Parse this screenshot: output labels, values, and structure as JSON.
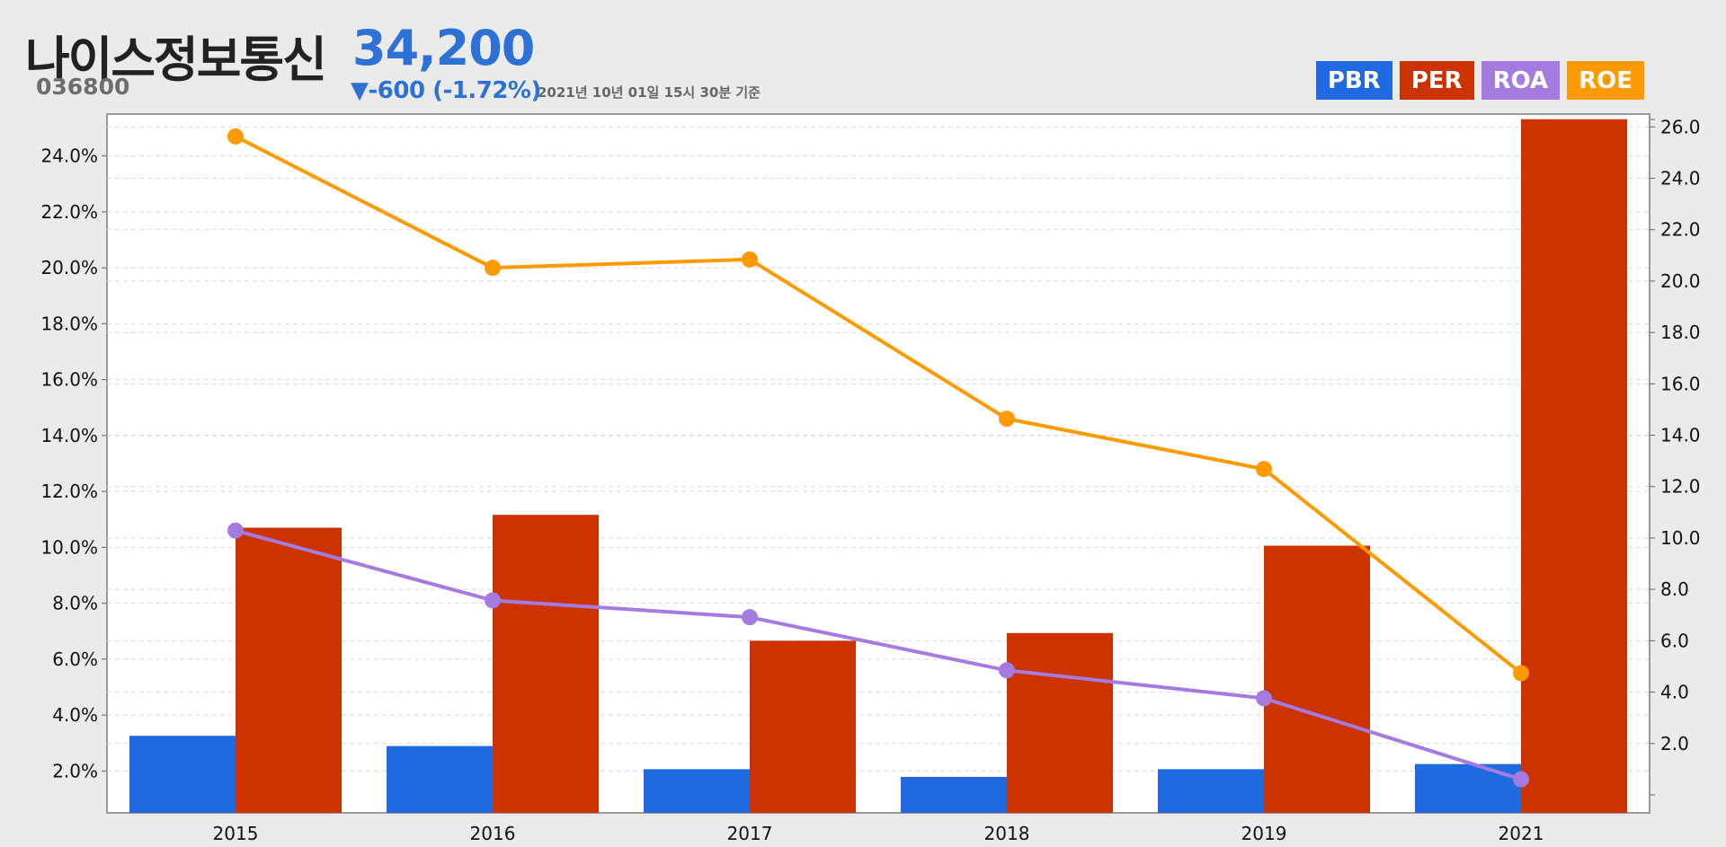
{
  "header": {
    "company_name": "나이스정보통신",
    "ticker_code": "036800",
    "price": "34,200",
    "change": "▼-600 (-1.72%)",
    "as_of": "2021년 10년 01일 15시 30분 기준"
  },
  "legend": [
    {
      "label": "PBR",
      "color": "#1f6ae1"
    },
    {
      "label": "PER",
      "color": "#cc3300"
    },
    {
      "label": "ROA",
      "color": "#a57be0"
    },
    {
      "label": "ROE",
      "color": "#ff9900"
    }
  ],
  "chart_data": {
    "type": "bar",
    "categories": [
      "2015",
      "2016",
      "2017",
      "2018",
      "2019",
      "2021"
    ],
    "left_axis": {
      "ticks": [
        "2.0%",
        "4.0%",
        "6.0%",
        "8.0%",
        "10.0%",
        "12.0%",
        "14.0%",
        "16.0%",
        "18.0%",
        "20.0%",
        "22.0%",
        "24.0%"
      ],
      "range": [
        0.5,
        25.5
      ]
    },
    "right_axis": {
      "ticks": [
        "2.0",
        "4.0",
        "6.0",
        "8.0",
        "10.0",
        "12.0",
        "14.0",
        "16.0",
        "18.0",
        "20.0",
        "22.0",
        "24.0",
        "26.0"
      ],
      "range": [
        -0.7,
        26.5
      ]
    },
    "series": [
      {
        "name": "PBR",
        "kind": "bar",
        "axis": "right",
        "color": "#1f6ae1",
        "values": [
          2.3,
          1.9,
          1.0,
          0.7,
          1.0,
          1.2
        ]
      },
      {
        "name": "PER",
        "kind": "bar",
        "axis": "right",
        "color": "#cc3300",
        "values": [
          10.4,
          10.9,
          6.0,
          6.3,
          9.7,
          26.3
        ]
      },
      {
        "name": "ROA",
        "kind": "line",
        "axis": "left",
        "color": "#a57be0",
        "values": [
          10.6,
          8.1,
          7.5,
          5.6,
          4.6,
          1.7
        ]
      },
      {
        "name": "ROE",
        "kind": "line",
        "axis": "left",
        "color": "#ff9900",
        "values": [
          24.7,
          20.0,
          20.3,
          14.6,
          12.8,
          5.5
        ]
      }
    ],
    "grid": true,
    "legend_position": "top-right"
  }
}
